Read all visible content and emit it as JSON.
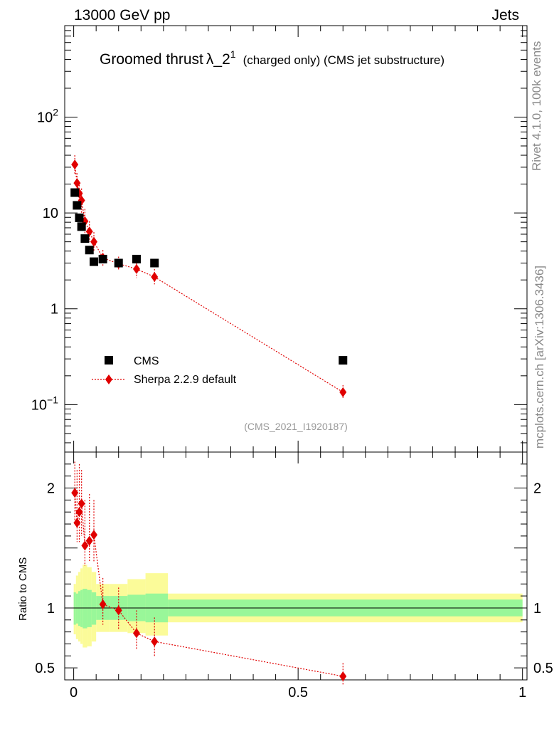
{
  "header": {
    "left": "13000 GeV pp",
    "right": "Jets"
  },
  "title": {
    "main": "Groomed thrust",
    "lambda": "λ_2",
    "sup": "1",
    "paren": "(charged only) (CMS jet substructure)"
  },
  "side_text": {
    "rivet": "Rivet 4.1.0,  100k events",
    "mcplots": "mcplots.cern.ch [arXiv:1306.3436]"
  },
  "analysis_id": "(CMS_2021_I1920187)",
  "legend": {
    "data_label": "CMS",
    "mc_label": "Sherpa 2.2.9 default"
  },
  "colors": {
    "data": "#000000",
    "mc": "#e00000",
    "band_inner": "#99f799",
    "band_outer": "#fbfb99"
  },
  "chart_data": [
    {
      "type": "scatter",
      "panel": "main",
      "yscale": "log",
      "xlim": [
        -0.02,
        1.01
      ],
      "ylim": [
        0.032,
        900
      ],
      "y_ticks": [
        {
          "value": 0.1,
          "base": "10",
          "exp": "−1"
        },
        {
          "value": 1,
          "base": "1",
          "exp": ""
        },
        {
          "value": 10,
          "base": "10",
          "exp": ""
        },
        {
          "value": 100,
          "base": "10",
          "exp": "2"
        }
      ],
      "series": [
        {
          "name": "CMS",
          "x": [
            0.0025,
            0.0075,
            0.0125,
            0.0175,
            0.025,
            0.035,
            0.045,
            0.065,
            0.1,
            0.14,
            0.18,
            0.6
          ],
          "y": [
            16.3,
            12.0,
            8.9,
            7.2,
            5.4,
            4.1,
            3.1,
            3.3,
            3.0,
            3.3,
            3.0,
            0.29
          ]
        },
        {
          "name": "Sherpa 2.2.9 default",
          "x": [
            0.0025,
            0.0075,
            0.0125,
            0.0175,
            0.025,
            0.035,
            0.045,
            0.065,
            0.1,
            0.14,
            0.18,
            0.6
          ],
          "y": [
            32.0,
            20.5,
            16.0,
            13.5,
            8.2,
            6.4,
            5.0,
            3.4,
            2.95,
            2.6,
            2.15,
            0.135
          ],
          "err_up": [
            40.0,
            26.0,
            21.0,
            18.0,
            11.0,
            8.2,
            6.3,
            4.1,
            3.5,
            3.2,
            2.6,
            0.16
          ],
          "err_down": [
            25.0,
            15.0,
            11.5,
            10.0,
            6.0,
            5.0,
            4.0,
            2.8,
            2.5,
            2.1,
            1.8,
            0.115
          ]
        }
      ]
    },
    {
      "type": "scatter",
      "panel": "ratio",
      "ylabel": "Ratio to CMS",
      "xlim": [
        -0.02,
        1.01
      ],
      "ylim": [
        0.4,
        2.3
      ],
      "y_ticks": [
        {
          "value": 0.5,
          "label": "0.5"
        },
        {
          "value": 1,
          "label": "1"
        },
        {
          "value": 2,
          "label": "2"
        }
      ],
      "x_ticks": [
        {
          "value": 0,
          "label": "0"
        },
        {
          "value": 0.5,
          "label": "0.5"
        },
        {
          "value": 1,
          "label": "1"
        }
      ],
      "bands": [
        {
          "x0": 0.0,
          "x1": 0.005,
          "inner": [
            0.86,
            1.13
          ],
          "outer": [
            0.78,
            1.2
          ]
        },
        {
          "x0": 0.005,
          "x1": 0.01,
          "inner": [
            0.87,
            1.12
          ],
          "outer": [
            0.74,
            1.27
          ]
        },
        {
          "x0": 0.01,
          "x1": 0.015,
          "inner": [
            0.85,
            1.14
          ],
          "outer": [
            0.72,
            1.3
          ]
        },
        {
          "x0": 0.015,
          "x1": 0.02,
          "inner": [
            0.84,
            1.15
          ],
          "outer": [
            0.7,
            1.33
          ]
        },
        {
          "x0": 0.02,
          "x1": 0.03,
          "inner": [
            0.83,
            1.16
          ],
          "outer": [
            0.67,
            1.36
          ]
        },
        {
          "x0": 0.03,
          "x1": 0.04,
          "inner": [
            0.84,
            1.15
          ],
          "outer": [
            0.68,
            1.34
          ]
        },
        {
          "x0": 0.04,
          "x1": 0.05,
          "inner": [
            0.86,
            1.13
          ],
          "outer": [
            0.72,
            1.3
          ]
        },
        {
          "x0": 0.05,
          "x1": 0.08,
          "inner": [
            0.9,
            1.1
          ],
          "outer": [
            0.8,
            1.2
          ]
        },
        {
          "x0": 0.08,
          "x1": 0.12,
          "inner": [
            0.9,
            1.1
          ],
          "outer": [
            0.8,
            1.2
          ]
        },
        {
          "x0": 0.12,
          "x1": 0.16,
          "inner": [
            0.89,
            1.11
          ],
          "outer": [
            0.79,
            1.24
          ]
        },
        {
          "x0": 0.16,
          "x1": 0.21,
          "inner": [
            0.88,
            1.12
          ],
          "outer": [
            0.77,
            1.29
          ]
        },
        {
          "x0": 0.21,
          "x1": 1.0,
          "inner": [
            0.93,
            1.07
          ],
          "outer": [
            0.88,
            1.12
          ]
        }
      ],
      "series": [
        {
          "name": "Sherpa 2.2.9 default / CMS",
          "x": [
            0.0025,
            0.0075,
            0.0125,
            0.0175,
            0.025,
            0.035,
            0.045,
            0.065,
            0.1,
            0.14,
            0.18,
            0.6
          ],
          "y": [
            1.96,
            1.71,
            1.8,
            1.87,
            1.52,
            1.56,
            1.61,
            1.03,
            0.98,
            0.79,
            0.72,
            0.43
          ],
          "err_up": [
            2.22,
            2.15,
            2.2,
            2.15,
            1.9,
            1.95,
            1.9,
            1.25,
            1.17,
            0.98,
            0.92,
            0.54
          ],
          "err_down": [
            1.72,
            1.55,
            1.55,
            1.6,
            1.35,
            1.38,
            1.38,
            0.86,
            0.82,
            0.65,
            0.59,
            0.36
          ]
        }
      ]
    }
  ]
}
